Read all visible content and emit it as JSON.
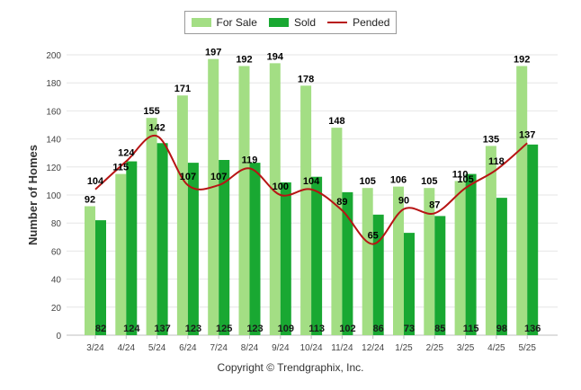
{
  "legend": {
    "for_sale_label": "For Sale",
    "sold_label": "Sold",
    "pended_label": "Pended"
  },
  "copyright": "Copyright © Trendgraphix, Inc.",
  "colors": {
    "for_sale": "#a3de84",
    "sold": "#19a832",
    "pended": "#b71414",
    "grid": "#e6e6e6"
  },
  "chart_data": {
    "type": "bar",
    "ylabel": "Number of Homes",
    "ylim": [
      0,
      200
    ],
    "yticks": [
      0,
      20,
      40,
      60,
      80,
      100,
      120,
      140,
      160,
      180,
      200
    ],
    "categories": [
      "3/24",
      "4/24",
      "5/24",
      "6/24",
      "7/24",
      "8/24",
      "9/24",
      "10/24",
      "11/24",
      "12/24",
      "1/25",
      "2/25",
      "3/25",
      "4/25",
      "5/25"
    ],
    "series": [
      {
        "name": "For Sale",
        "kind": "bar",
        "values": [
          92,
          115,
          155,
          171,
          197,
          192,
          194,
          178,
          148,
          105,
          106,
          105,
          110,
          135,
          192
        ]
      },
      {
        "name": "Sold",
        "kind": "bar",
        "values": [
          82,
          124,
          137,
          123,
          125,
          123,
          109,
          113,
          102,
          86,
          73,
          85,
          115,
          98,
          136
        ]
      },
      {
        "name": "Pended",
        "kind": "line",
        "values": [
          104,
          124,
          142,
          107,
          107,
          119,
          100,
          104,
          89,
          65,
          90,
          87,
          105,
          118,
          137
        ]
      }
    ],
    "grid": true,
    "legend_position": "top-center"
  }
}
